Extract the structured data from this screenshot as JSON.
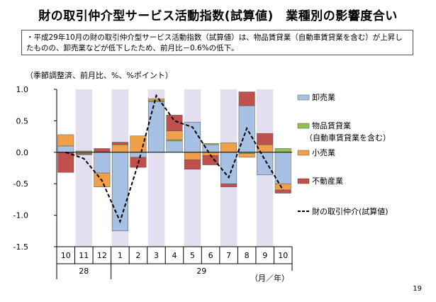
{
  "page": {
    "title": "財の取引仲介型サービス活動指数(試算値)　業種別の影響度合い",
    "summary": "・平成29年10月の財の取引仲介型サービス活動指数（試算値）は、物品賃貸業（自動車賃貸業を含む）が上昇したものの、卸売業などが低下したため、前月比－0.6%の低下。",
    "unit_note": "（季節調整済、前月比、%、%ポイント）",
    "x_unit": "（月／年）",
    "page_number": "19"
  },
  "chart_data": {
    "type": "bar",
    "stacked": true,
    "categories": [
      "10",
      "11",
      "12",
      "1",
      "2",
      "3",
      "4",
      "5",
      "6",
      "7",
      "8",
      "9",
      "10"
    ],
    "year_labels": [
      {
        "label": "28",
        "from": 0,
        "to": 2
      },
      {
        "label": "29",
        "from": 3,
        "to": 12
      }
    ],
    "shaded_categories": [
      1,
      3,
      5,
      7,
      9,
      11
    ],
    "ylim": [
      -1.5,
      1.0
    ],
    "yticks": [
      "1.0",
      "0.5",
      "0.0",
      "-0.5",
      "-1.0",
      "-1.5"
    ],
    "series": [
      {
        "name": "卸売業",
        "color": "#a6c1e3",
        "values": [
          0.1,
          0.0,
          -0.33,
          -1.25,
          -0.08,
          0.8,
          0.18,
          0.48,
          0.12,
          -0.5,
          0.74,
          -0.36,
          -0.5
        ]
      },
      {
        "name": "物品賃貸業",
        "name2": "（自動車賃貸業を含む）",
        "color": "#8fc24f",
        "values": [
          0.0,
          0.02,
          0.0,
          0.0,
          0.0,
          0.02,
          0.02,
          0.0,
          0.02,
          0.0,
          -0.02,
          0.0,
          0.06
        ]
      },
      {
        "name": "小売業",
        "color": "#f0a04b",
        "values": [
          0.18,
          -0.02,
          -0.22,
          0.12,
          0.26,
          0.03,
          0.14,
          -0.12,
          -0.05,
          0.15,
          -0.06,
          0.12,
          -0.1
        ]
      },
      {
        "name": "不動産業",
        "color": "#c0504d",
        "values": [
          -0.32,
          -0.02,
          0.06,
          0.04,
          -0.16,
          0.0,
          0.25,
          -0.15,
          -0.15,
          -0.05,
          0.22,
          0.18,
          -0.05
        ]
      }
    ],
    "line": {
      "name": "財の取引仲介(試算値)",
      "values": [
        0.0,
        -0.1,
        -0.45,
        -1.1,
        -0.18,
        0.9,
        0.5,
        0.4,
        -0.05,
        -0.4,
        0.38,
        -0.12,
        -0.6
      ]
    }
  }
}
